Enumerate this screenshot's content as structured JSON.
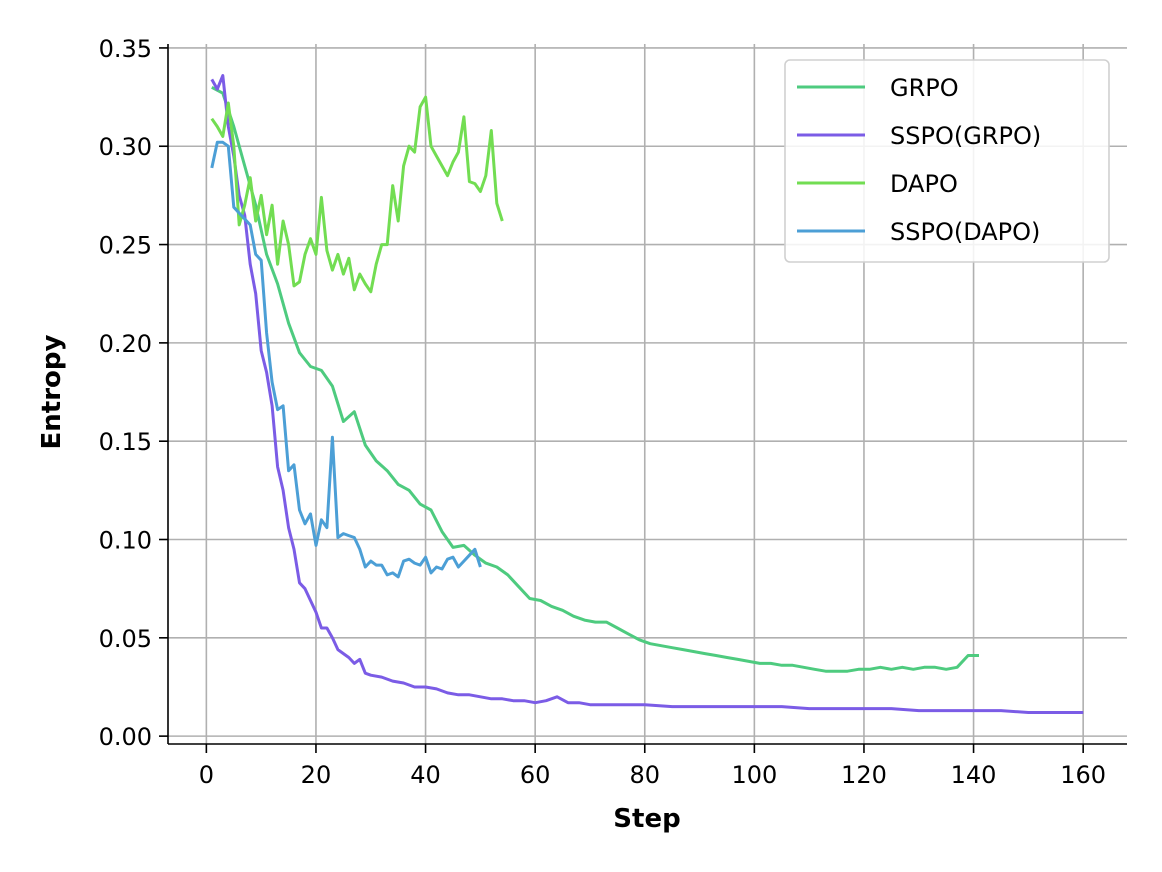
{
  "chart_data": {
    "type": "line",
    "title": "",
    "xlabel": "Step",
    "ylabel": "Entropy",
    "xlim": [
      -7,
      168
    ],
    "ylim": [
      -0.004,
      0.352
    ],
    "x_ticks": [
      0,
      20,
      40,
      60,
      80,
      100,
      120,
      140,
      160
    ],
    "y_ticks": [
      0.0,
      0.05,
      0.1,
      0.15,
      0.2,
      0.25,
      0.3,
      0.35
    ],
    "grid": true,
    "legend_position": "top-right",
    "series": [
      {
        "name": "GRPO",
        "color": "#4ecb7f",
        "x": [
          1,
          3,
          5,
          7,
          9,
          11,
          13,
          15,
          17,
          19,
          21,
          23,
          25,
          27,
          29,
          31,
          33,
          35,
          37,
          39,
          41,
          43,
          45,
          47,
          49,
          51,
          53,
          55,
          57,
          59,
          61,
          63,
          65,
          67,
          69,
          71,
          73,
          75,
          77,
          79,
          81,
          83,
          85,
          87,
          89,
          91,
          93,
          95,
          97,
          99,
          101,
          103,
          105,
          107,
          109,
          111,
          113,
          115,
          117,
          119,
          121,
          123,
          125,
          127,
          129,
          131,
          133,
          135,
          137,
          139,
          141
        ],
        "y": [
          0.33,
          0.327,
          0.31,
          0.29,
          0.27,
          0.245,
          0.23,
          0.21,
          0.195,
          0.188,
          0.186,
          0.178,
          0.16,
          0.165,
          0.148,
          0.14,
          0.135,
          0.128,
          0.125,
          0.118,
          0.115,
          0.104,
          0.096,
          0.097,
          0.092,
          0.088,
          0.086,
          0.082,
          0.076,
          0.07,
          0.069,
          0.066,
          0.064,
          0.061,
          0.059,
          0.058,
          0.058,
          0.055,
          0.052,
          0.049,
          0.047,
          0.046,
          0.045,
          0.044,
          0.043,
          0.042,
          0.041,
          0.04,
          0.039,
          0.038,
          0.037,
          0.037,
          0.036,
          0.036,
          0.035,
          0.034,
          0.033,
          0.033,
          0.033,
          0.034,
          0.034,
          0.035,
          0.034,
          0.035,
          0.034,
          0.035,
          0.035,
          0.034,
          0.035,
          0.041,
          0.041
        ]
      },
      {
        "name": "SSPO(GRPO)",
        "color": "#7b5ce6",
        "x": [
          1,
          2,
          3,
          4,
          5,
          6,
          7,
          8,
          9,
          10,
          11,
          12,
          13,
          14,
          15,
          16,
          17,
          18,
          19,
          20,
          21,
          22,
          23,
          24,
          25,
          26,
          27,
          28,
          29,
          30,
          32,
          34,
          36,
          38,
          40,
          42,
          44,
          46,
          48,
          50,
          52,
          54,
          56,
          58,
          60,
          62,
          64,
          66,
          68,
          70,
          75,
          80,
          85,
          90,
          95,
          100,
          105,
          110,
          115,
          120,
          125,
          130,
          135,
          140,
          145,
          150,
          155,
          160
        ],
        "y": [
          0.334,
          0.329,
          0.336,
          0.31,
          0.295,
          0.275,
          0.265,
          0.24,
          0.225,
          0.196,
          0.185,
          0.168,
          0.137,
          0.125,
          0.106,
          0.095,
          0.078,
          0.075,
          0.069,
          0.063,
          0.055,
          0.055,
          0.05,
          0.044,
          0.042,
          0.04,
          0.037,
          0.039,
          0.032,
          0.031,
          0.03,
          0.028,
          0.027,
          0.025,
          0.025,
          0.024,
          0.022,
          0.021,
          0.021,
          0.02,
          0.019,
          0.019,
          0.018,
          0.018,
          0.017,
          0.018,
          0.02,
          0.017,
          0.017,
          0.016,
          0.016,
          0.016,
          0.015,
          0.015,
          0.015,
          0.015,
          0.015,
          0.014,
          0.014,
          0.014,
          0.014,
          0.013,
          0.013,
          0.013,
          0.013,
          0.012,
          0.012,
          0.012
        ]
      },
      {
        "name": "DAPO",
        "color": "#72dd52",
        "x": [
          1,
          2,
          3,
          4,
          5,
          6,
          7,
          8,
          9,
          10,
          11,
          12,
          13,
          14,
          15,
          16,
          17,
          18,
          19,
          20,
          21,
          22,
          23,
          24,
          25,
          26,
          27,
          28,
          29,
          30,
          31,
          32,
          33,
          34,
          35,
          36,
          37,
          38,
          39,
          40,
          41,
          42,
          43,
          44,
          45,
          46,
          47,
          48,
          49,
          50,
          51,
          52,
          53,
          54
        ],
        "y": [
          0.314,
          0.31,
          0.305,
          0.322,
          0.3,
          0.26,
          0.27,
          0.284,
          0.262,
          0.275,
          0.255,
          0.27,
          0.24,
          0.262,
          0.25,
          0.229,
          0.231,
          0.245,
          0.253,
          0.245,
          0.274,
          0.247,
          0.237,
          0.245,
          0.235,
          0.243,
          0.227,
          0.235,
          0.23,
          0.226,
          0.24,
          0.25,
          0.25,
          0.28,
          0.262,
          0.29,
          0.3,
          0.297,
          0.32,
          0.325,
          0.3,
          0.295,
          0.29,
          0.285,
          0.292,
          0.297,
          0.315,
          0.282,
          0.281,
          0.277,
          0.285,
          0.308,
          0.271,
          0.262
        ]
      },
      {
        "name": "SSPO(DAPO)",
        "color": "#4c9fd6",
        "x": [
          1,
          2,
          3,
          4,
          5,
          6,
          7,
          8,
          9,
          10,
          11,
          12,
          13,
          14,
          15,
          16,
          17,
          18,
          19,
          20,
          21,
          22,
          23,
          24,
          25,
          26,
          27,
          28,
          29,
          30,
          31,
          32,
          33,
          34,
          35,
          36,
          37,
          38,
          39,
          40,
          41,
          42,
          43,
          44,
          45,
          46,
          47,
          48,
          49,
          50
        ],
        "y": [
          0.289,
          0.302,
          0.302,
          0.3,
          0.269,
          0.266,
          0.263,
          0.26,
          0.245,
          0.242,
          0.205,
          0.18,
          0.166,
          0.168,
          0.135,
          0.138,
          0.115,
          0.108,
          0.113,
          0.097,
          0.11,
          0.106,
          0.152,
          0.101,
          0.103,
          0.102,
          0.101,
          0.095,
          0.086,
          0.089,
          0.087,
          0.087,
          0.082,
          0.083,
          0.081,
          0.089,
          0.09,
          0.088,
          0.087,
          0.091,
          0.083,
          0.086,
          0.085,
          0.09,
          0.091,
          0.086,
          0.089,
          0.092,
          0.095,
          0.086
        ]
      }
    ]
  }
}
